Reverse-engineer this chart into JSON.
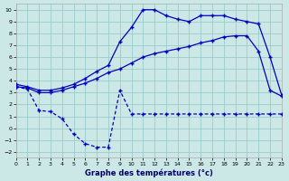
{
  "xlabel": "Graphe des températures (°c)",
  "background_color": "#cce8e6",
  "grid_color": "#99ccca",
  "line_color": "#0000bb",
  "xlim": [
    0,
    23
  ],
  "ylim": [
    -2.5,
    10.5
  ],
  "xticks": [
    0,
    1,
    2,
    3,
    4,
    5,
    6,
    7,
    8,
    9,
    10,
    11,
    12,
    13,
    14,
    15,
    16,
    17,
    18,
    19,
    20,
    21,
    22,
    23
  ],
  "yticks": [
    -2,
    -1,
    0,
    1,
    2,
    3,
    4,
    5,
    6,
    7,
    8,
    9,
    10
  ],
  "s_top_x": [
    0,
    1,
    2,
    3,
    4,
    5,
    6,
    7,
    8,
    9,
    10,
    11,
    12,
    13,
    14,
    15,
    16,
    17,
    18,
    19,
    20,
    21,
    22,
    23
  ],
  "s_top_y": [
    3.7,
    3.5,
    3.2,
    3.2,
    3.4,
    3.7,
    4.2,
    4.8,
    5.3,
    7.3,
    8.5,
    10.0,
    10.0,
    9.5,
    9.2,
    9.0,
    9.5,
    9.5,
    9.5,
    9.2,
    9.0,
    8.8,
    6.0,
    2.8
  ],
  "s_mid_x": [
    0,
    1,
    2,
    3,
    4,
    5,
    6,
    7,
    8,
    9,
    10,
    11,
    12,
    13,
    14,
    15,
    16,
    17,
    18,
    19,
    20,
    21,
    22,
    23
  ],
  "s_mid_y": [
    3.5,
    3.4,
    3.0,
    3.0,
    3.2,
    3.5,
    3.8,
    4.2,
    4.7,
    5.0,
    5.5,
    6.0,
    6.3,
    6.5,
    6.7,
    6.9,
    7.2,
    7.4,
    7.7,
    7.8,
    7.8,
    6.5,
    3.2,
    2.7
  ],
  "s_bot_x": [
    0,
    1,
    2,
    3,
    4,
    5,
    6,
    7,
    8,
    9,
    10,
    11,
    12,
    13,
    14,
    15,
    16,
    17,
    18,
    19,
    20,
    21,
    22,
    23
  ],
  "s_bot_y": [
    3.5,
    3.3,
    1.5,
    1.4,
    0.8,
    -0.5,
    -1.3,
    -1.6,
    -1.6,
    3.2,
    1.2,
    1.2,
    1.2,
    1.2,
    1.2,
    1.2,
    1.2,
    1.2,
    1.2,
    1.2,
    1.2,
    1.2,
    1.2,
    1.2
  ]
}
